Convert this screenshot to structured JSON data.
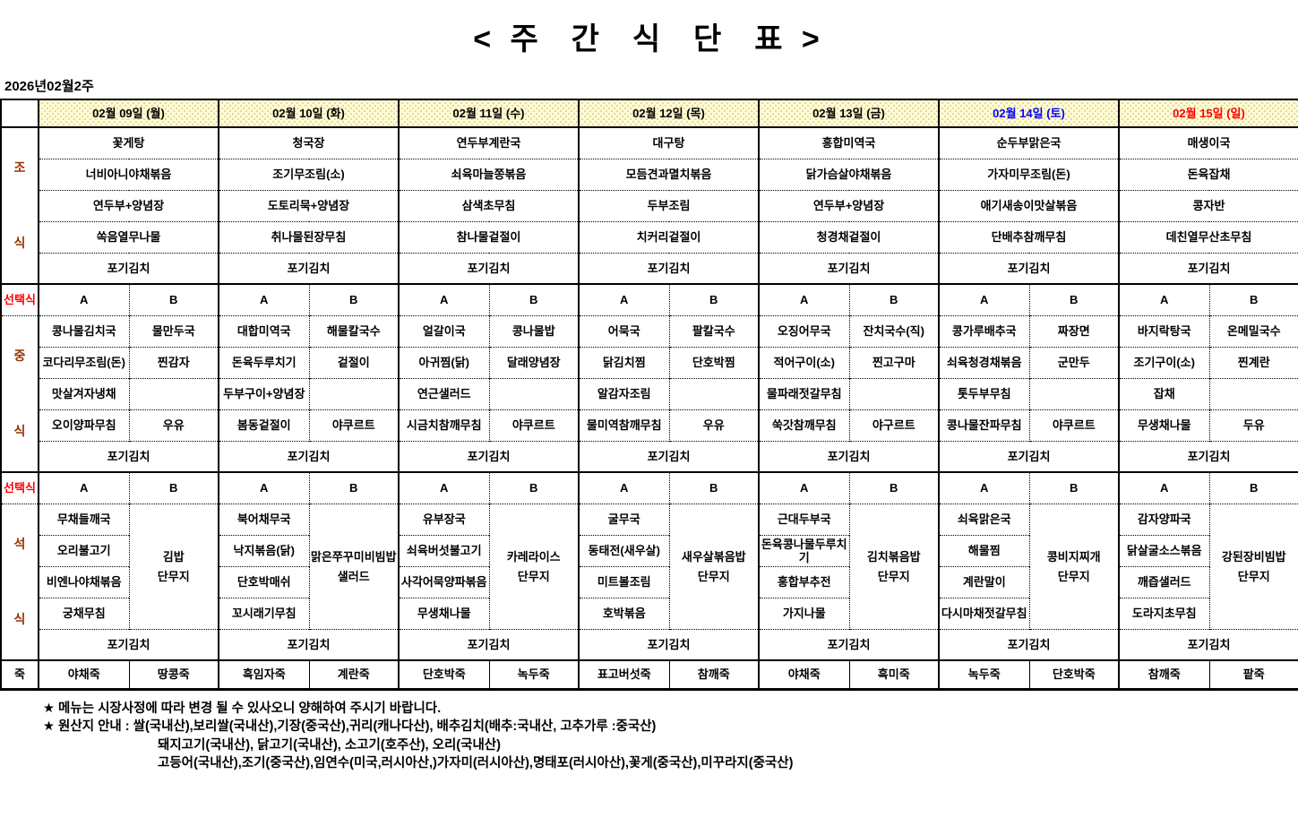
{
  "page": {
    "title": "< 주  간  식  단  표 >",
    "week_label": "2026년02월2주"
  },
  "colors": {
    "header_bg": "#FFFCD6",
    "weekday_text": "#000000",
    "saturday_text": "#0000FF",
    "sunday_text": "#FF0000",
    "section_label_text": "#993300",
    "choice_label_text": "#FF0000"
  },
  "table": {
    "day_headers": [
      {
        "label": "02월 09일 (월)",
        "color": "#000000"
      },
      {
        "label": "02월 10일 (화)",
        "color": "#000000"
      },
      {
        "label": "02월 11일 (수)",
        "color": "#000000"
      },
      {
        "label": "02월 12일 (목)",
        "color": "#000000"
      },
      {
        "label": "02월 13일 (금)",
        "color": "#000000"
      },
      {
        "label": "02월 14일 (토)",
        "color": "#0000FF"
      },
      {
        "label": "02월 15일 (일)",
        "color": "#FF0000"
      }
    ],
    "breakfast": {
      "label": "조식",
      "days": [
        [
          "꽃게탕",
          "너비아니야채볶음",
          "연두부+양념장",
          "쏙음열무나물"
        ],
        [
          "청국장",
          "조기무조림(소)",
          "도토리묵+양념장",
          "취나물된장무침"
        ],
        [
          "연두부계란국",
          "쇠육마늘쫑볶음",
          "삼색초무침",
          "참나물겉절이"
        ],
        [
          "대구탕",
          "모듬견과멸치볶음",
          "두부조림",
          "치커리겉절이"
        ],
        [
          "홍합미역국",
          "닭가슴살야채볶음",
          "연두부+양념장",
          "청경채겉절이"
        ],
        [
          "순두부맑은국",
          "가자미무조림(돈)",
          "애기새송이맛살볶음",
          "단배추참깨무침"
        ],
        [
          "매생이국",
          "돈육잡채",
          "콩자반",
          "데친열무산초무침"
        ]
      ],
      "kimchi": "포기김치"
    },
    "lunch": {
      "label": "중식",
      "choice_label": "선택식",
      "option_headers": [
        "A",
        "B"
      ],
      "days": [
        {
          "a": [
            "콩나물김치국",
            "코다리무조림(돈)",
            "맛살겨자냉채",
            "오이양파무침"
          ],
          "b": [
            "물만두국",
            "찐감자",
            "",
            "우유"
          ]
        },
        {
          "a": [
            "대합미역국",
            "돈육두루치기",
            "두부구이+양념장",
            "봄동겉절이"
          ],
          "b": [
            "해물칼국수",
            "겉절이",
            "",
            "야쿠르트"
          ]
        },
        {
          "a": [
            "얼갈이국",
            "아귀찜(닭)",
            "연근샐러드",
            "시금치참깨무침"
          ],
          "b": [
            "콩나물밥",
            "달래양념장",
            "",
            "야쿠르트"
          ]
        },
        {
          "a": [
            "어묵국",
            "닭김치찜",
            "알감자조림",
            "물미역참깨무침"
          ],
          "b": [
            "팔칼국수",
            "단호박찜",
            "",
            "우유"
          ]
        },
        {
          "a": [
            "오징어무국",
            "적어구이(소)",
            "물파래젓갈무침",
            "쑥갓참깨무침"
          ],
          "b": [
            "잔치국수(직)",
            "찐고구마",
            "",
            "야구르트"
          ]
        },
        {
          "a": [
            "콩가루배추국",
            "쇠육청경채볶음",
            "톳두부무침",
            "콩나물잔파무침"
          ],
          "b": [
            "짜장면",
            "군만두",
            "",
            "야쿠르트"
          ]
        },
        {
          "a": [
            "바지락탕국",
            "조기구이(소)",
            "잡채",
            "무생채나물"
          ],
          "b": [
            "온메밀국수",
            "찐계란",
            "",
            "두유"
          ]
        }
      ],
      "kimchi": "포기김치"
    },
    "dinner": {
      "label": "석식",
      "choice_label": "선택식",
      "option_headers": [
        "A",
        "B"
      ],
      "days": [
        {
          "a": [
            "무채들깨국",
            "오리불고기",
            "비엔나야채볶음",
            "궁채무침"
          ],
          "b": [
            "김밥",
            "단무지"
          ]
        },
        {
          "a": [
            "북어채무국",
            "낙지볶음(닭)",
            "단호박매쉬",
            "꼬시래기무침"
          ],
          "b": [
            "맑은쭈꾸미비빔밥",
            "샐러드"
          ]
        },
        {
          "a": [
            "유부장국",
            "쇠육버섯불고기",
            "사각어묵양파볶음",
            "무생채나물"
          ],
          "b": [
            "카레라이스",
            "단무지"
          ]
        },
        {
          "a": [
            "굴무국",
            "동태전(새우살)",
            "미트볼조림",
            "호박볶음"
          ],
          "b": [
            "새우살볶음밥",
            "단무지"
          ]
        },
        {
          "a": [
            "근대두부국",
            "돈육콩나물두루치기",
            "홍합부추전",
            "가지나물"
          ],
          "b": [
            "김치볶음밥",
            "단무지"
          ]
        },
        {
          "a": [
            "쇠육맑은국",
            "해물찜",
            "계란말이",
            "다시마채젓갈무침"
          ],
          "b": [
            "콩비지찌개",
            "단무지"
          ]
        },
        {
          "a": [
            "감자양파국",
            "닭살굴소스볶음",
            "깨즙샐러드",
            "도라지초무침"
          ],
          "b": [
            "강된장비빔밥",
            "단무지"
          ]
        }
      ],
      "kimchi": "포기김치"
    },
    "porridge": {
      "label": "죽",
      "days": [
        {
          "a": "야채죽",
          "b": "땅콩죽"
        },
        {
          "a": "흑임자죽",
          "b": "계란죽"
        },
        {
          "a": "단호박죽",
          "b": "녹두죽"
        },
        {
          "a": "표고버섯죽",
          "b": "참깨죽"
        },
        {
          "a": "야채죽",
          "b": "흑미죽"
        },
        {
          "a": "녹두죽",
          "b": "단호박죽"
        },
        {
          "a": "참깨죽",
          "b": "팥죽"
        }
      ]
    }
  },
  "footnotes": [
    "★ 메뉴는 시장사정에 따라 변경 될 수 있사오니 양해하여 주시기 바랍니다.",
    "★ 원산지 안내 : 쌀(국내산),보리쌀(국내산),기장(중국산),귀리(캐나다산), 배추김치(배추:국내산, 고추가루 :중국산)",
    "돼지고기(국내산), 닭고기(국내산), 소고기(호주산), 오리(국내산)",
    "고등어(국내산),조기(중국산),임연수(미국,러시아산,)가자미(러시아산),명태포(러시아산),꽃게(중국산),미꾸라지(중국산)"
  ]
}
